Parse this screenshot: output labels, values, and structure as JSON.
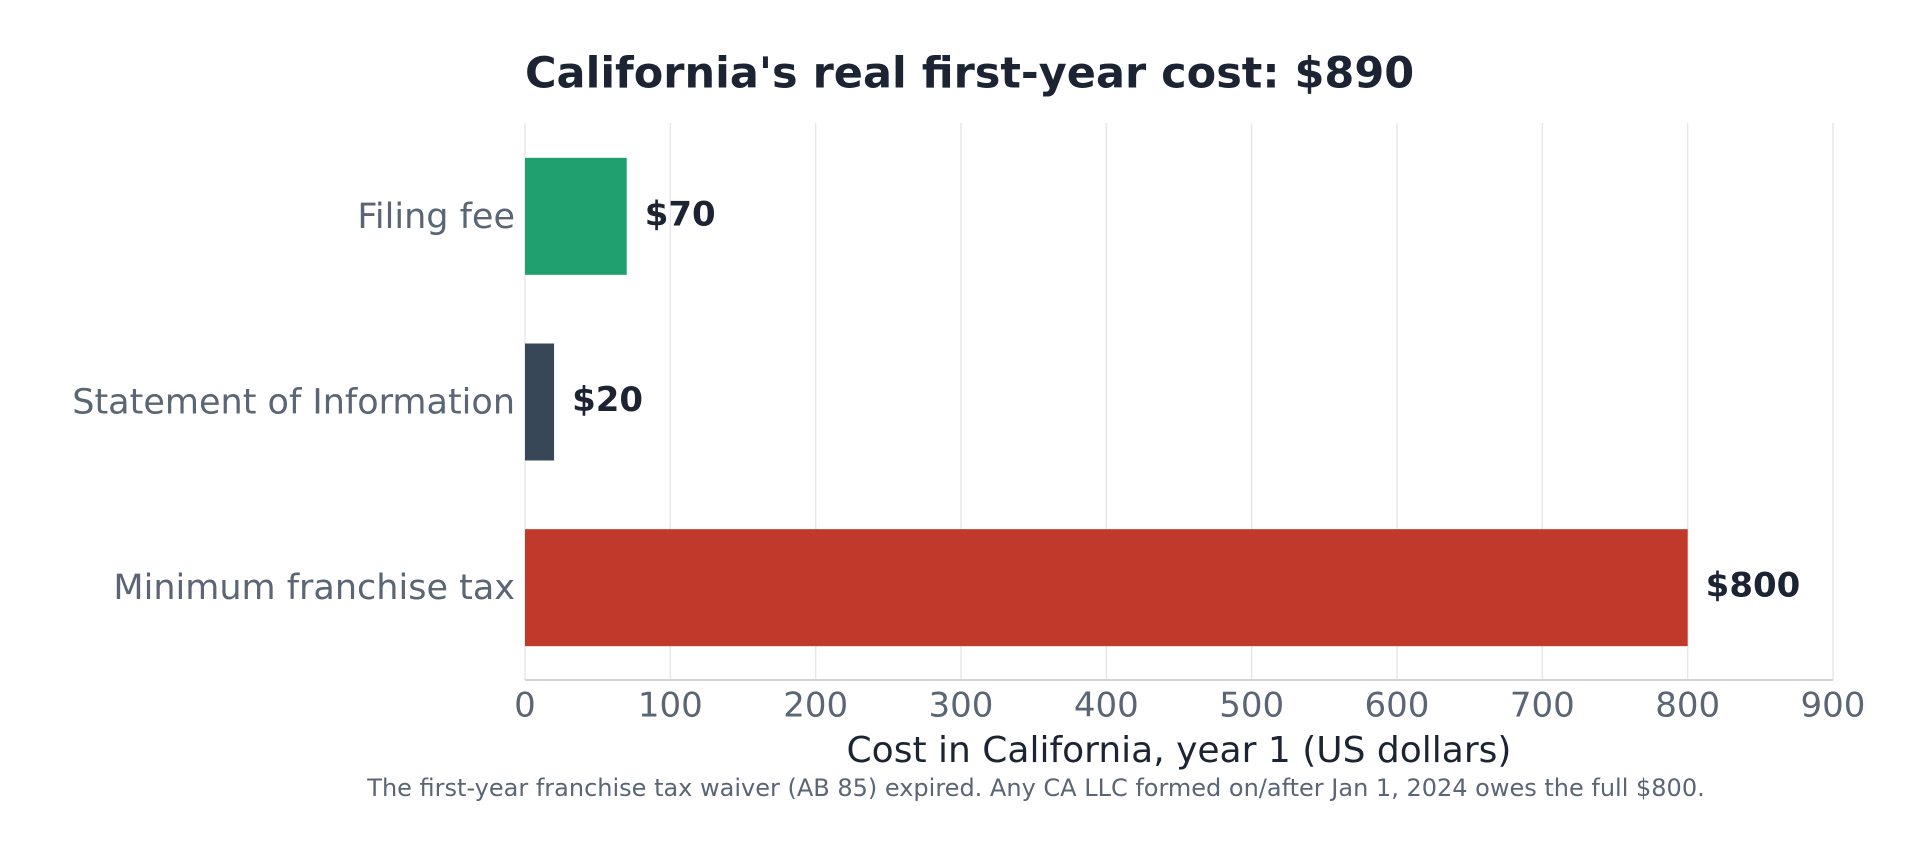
{
  "chart_data": {
    "type": "bar",
    "orientation": "horizontal",
    "title": "California's real first-year cost: $890",
    "categories": [
      "Filing fee",
      "Statement of Information",
      "Minimum franchise tax"
    ],
    "values": [
      70,
      20,
      800
    ],
    "value_labels": [
      "$70",
      "$20",
      "$800"
    ],
    "colors": [
      "#1fa06e",
      "#374757",
      "#c0392b"
    ],
    "xlim": [
      0,
      900
    ],
    "xticks": [
      0,
      100,
      200,
      300,
      400,
      500,
      600,
      700,
      800,
      900
    ],
    "xlabel": "Cost in California, year 1 (US dollars)",
    "note": "The first-year franchise tax waiver (AB 85) expired. Any CA LLC formed on/after Jan 1, 2024 owes the full $800.",
    "grid": true
  }
}
